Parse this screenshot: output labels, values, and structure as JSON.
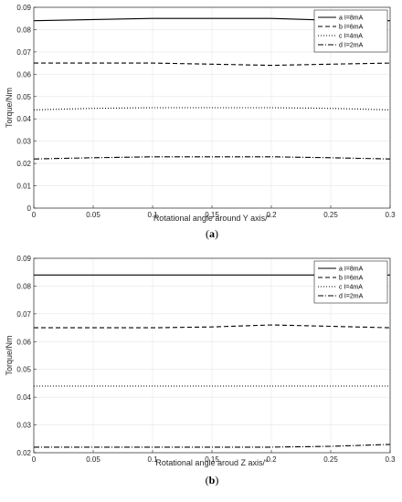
{
  "chart_data": [
    {
      "panel_label": "(a)",
      "panel_letter": "a",
      "type": "line",
      "title": "",
      "xlabel": "Rotational angle around Y axis/°",
      "ylabel": "Torque/Nm",
      "xlim": [
        0,
        0.3
      ],
      "ylim": [
        0,
        0.09
      ],
      "xticks": [
        0,
        0.05,
        0.1,
        0.15,
        0.2,
        0.25,
        0.3
      ],
      "xtick_labels": [
        "0",
        "0.05",
        "0.1",
        "0.15",
        "0.2",
        "0.25",
        "0.3"
      ],
      "yticks": [
        0,
        0.01,
        0.02,
        0.03,
        0.04,
        0.05,
        0.06,
        0.07,
        0.08,
        0.09
      ],
      "ytick_labels": [
        "0",
        "0.01",
        "0.02",
        "0.03",
        "0.04",
        "0.05",
        "0.06",
        "0.07",
        "0.08",
        "0.09"
      ],
      "grid": true,
      "legend_position": "top-right",
      "x": [
        0,
        0.05,
        0.1,
        0.15,
        0.2,
        0.25,
        0.3
      ],
      "series": [
        {
          "name": "a I=8mA",
          "style": "solid",
          "values": [
            0.084,
            0.0845,
            0.085,
            0.085,
            0.085,
            0.0842,
            0.084
          ]
        },
        {
          "name": "b I=6mA",
          "style": "dashed",
          "values": [
            0.065,
            0.065,
            0.065,
            0.0645,
            0.064,
            0.0645,
            0.065
          ]
        },
        {
          "name": "c I=4mA",
          "style": "dotted",
          "values": [
            0.044,
            0.0447,
            0.045,
            0.045,
            0.045,
            0.0447,
            0.044
          ]
        },
        {
          "name": "d I=2mA",
          "style": "dashdot",
          "values": [
            0.022,
            0.0226,
            0.023,
            0.023,
            0.023,
            0.0226,
            0.022
          ]
        }
      ]
    },
    {
      "panel_label": "(b)",
      "panel_letter": "b",
      "type": "line",
      "title": "",
      "xlabel": "Rotational angle aroud Z axis/°",
      "ylabel": "Torque/Nm",
      "xlim": [
        0,
        0.3
      ],
      "ylim": [
        0.02,
        0.09
      ],
      "xticks": [
        0,
        0.05,
        0.1,
        0.15,
        0.2,
        0.25,
        0.3
      ],
      "xtick_labels": [
        "0",
        "0.05",
        "0.1",
        "0.15",
        "0.2",
        "0.25",
        "0.3"
      ],
      "yticks": [
        0.02,
        0.03,
        0.04,
        0.05,
        0.06,
        0.07,
        0.08,
        0.09
      ],
      "ytick_labels": [
        "0.02",
        "0.03",
        "0.04",
        "0.05",
        "0.06",
        "0.07",
        "0.08",
        "0.09"
      ],
      "grid": true,
      "legend_position": "top-right",
      "x": [
        0,
        0.05,
        0.1,
        0.15,
        0.2,
        0.25,
        0.3
      ],
      "series": [
        {
          "name": "a I=8mA",
          "style": "solid",
          "values": [
            0.084,
            0.084,
            0.084,
            0.084,
            0.084,
            0.084,
            0.084
          ]
        },
        {
          "name": "b I=6mA",
          "style": "dashed",
          "values": [
            0.065,
            0.065,
            0.065,
            0.0653,
            0.066,
            0.0655,
            0.065
          ]
        },
        {
          "name": "c I=4mA",
          "style": "dotted",
          "values": [
            0.044,
            0.044,
            0.044,
            0.044,
            0.044,
            0.044,
            0.044
          ]
        },
        {
          "name": "d I=2mA",
          "style": "dashdot",
          "values": [
            0.022,
            0.022,
            0.022,
            0.022,
            0.022,
            0.0223,
            0.023
          ]
        }
      ]
    }
  ]
}
